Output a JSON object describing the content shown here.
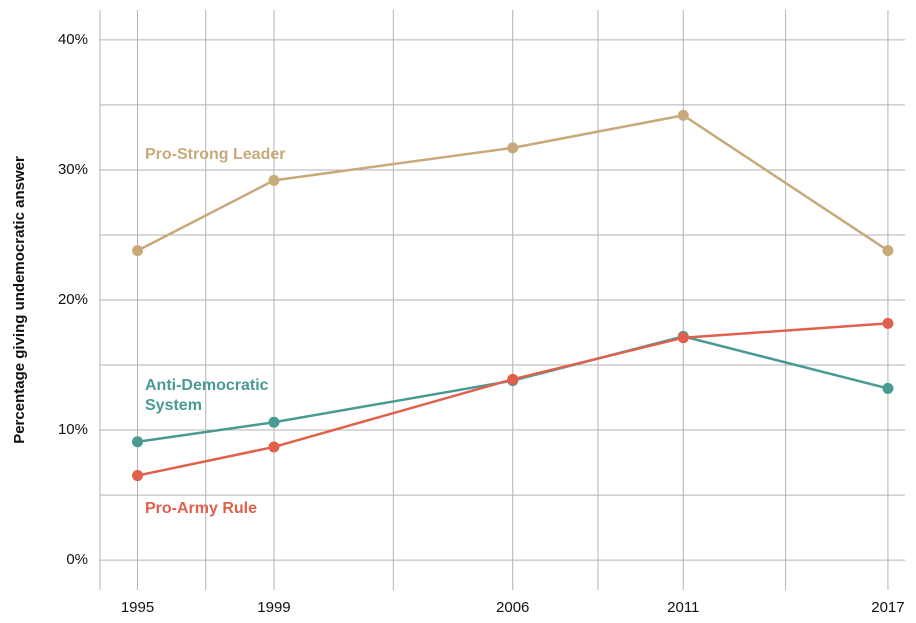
{
  "chart_data": {
    "type": "line",
    "y_label": "Percentage giving undemocratic answer",
    "x": [
      1995,
      1999,
      2006,
      2011,
      2017
    ],
    "xlim": [
      1993.9,
      2017.5
    ],
    "xticks": [
      1995,
      1999,
      2006,
      2011,
      2017
    ],
    "ylim": [
      -2.3,
      42.3
    ],
    "yticks": [
      {
        "value": 0,
        "label": "0%"
      },
      {
        "value": 10,
        "label": "10%"
      },
      {
        "value": 20,
        "label": "20%"
      },
      {
        "value": 30,
        "label": "30%"
      },
      {
        "value": 40,
        "label": "40%"
      }
    ],
    "grid": true,
    "series": [
      {
        "name": "Pro-Strong Leader",
        "color": "#c8a97a",
        "values": [
          23.8,
          29.2,
          31.7,
          34.2,
          23.8
        ]
      },
      {
        "name": "Anti-Democratic System",
        "color": "#4a9a94",
        "values": [
          9.1,
          10.6,
          13.8,
          17.2,
          13.2
        ]
      },
      {
        "name": "Pro-Army Rule",
        "color": "#e0604c",
        "values": [
          6.5,
          8.7,
          13.9,
          17.1,
          18.2
        ]
      }
    ]
  }
}
